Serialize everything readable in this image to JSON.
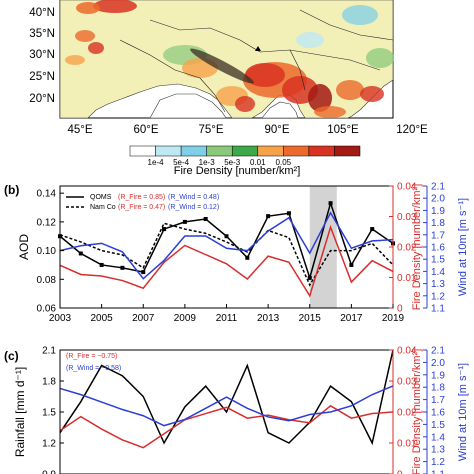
{
  "panel_a": {
    "lat_labels": [
      "40°N",
      "35°N",
      "30°N",
      "25°N",
      "20°N"
    ],
    "lon_labels": [
      "45°E",
      "60°E",
      "75°E",
      "90°E",
      "105°E",
      "120°E"
    ],
    "colorbar": {
      "ticks": [
        "1e-4",
        "5e-4",
        "1e-3",
        "5e-3",
        "0.01",
        "0.05"
      ],
      "colors": [
        "#ffffff",
        "#bfe8f5",
        "#7fd0e6",
        "#8ac97a",
        "#3fa84a",
        "#f6a24a",
        "#ec6a2c",
        "#d83222",
        "#a31a14"
      ],
      "title": "Fire Density [number/km²]"
    },
    "land_color": "#f2efb7",
    "ocean_color": "#ffffff"
  },
  "chart_data": [
    {
      "type": "line",
      "panel": "(b)",
      "x": [
        2003,
        2004,
        2005,
        2006,
        2007,
        2008,
        2009,
        2010,
        2011,
        2012,
        2013,
        2014,
        2015,
        2016,
        2017,
        2018,
        2019
      ],
      "xlim": [
        2003,
        2019
      ],
      "xticks": [
        "2003",
        "2005",
        "2007",
        "2009",
        "2011",
        "2013",
        "2015",
        "2017",
        "2019"
      ],
      "highlight_x": [
        2015,
        2016.3
      ],
      "axes": {
        "left": {
          "label": "AOD",
          "ylim": [
            0.06,
            0.145
          ],
          "ticks": [
            "0.06",
            "0.08",
            "0.10",
            "0.12",
            "0.14"
          ],
          "color": "#000000"
        },
        "right1": {
          "label": "Fire Density [number/km²]",
          "ylim": [
            0,
            0.04
          ],
          "ticks": [
            "0",
            "0.01",
            "0.02",
            "0.03",
            "0.04"
          ],
          "color": "#d92d2d"
        },
        "right2": {
          "label": "Wind at 10m [m s⁻¹]",
          "ylim": [
            1.1,
            2.1
          ],
          "ticks": [
            "1.1",
            "1.2",
            "1.3",
            "1.4",
            "1.5",
            "1.6",
            "1.7",
            "1.8",
            "1.9",
            "2.0",
            "2.1"
          ],
          "color": "#2b3ed6"
        }
      },
      "series": [
        {
          "name": "QOMS",
          "axis": "left",
          "color": "#000000",
          "style": "solid",
          "marker": true,
          "values": [
            0.11,
            0.098,
            0.09,
            0.088,
            0.085,
            0.115,
            0.12,
            0.122,
            0.11,
            0.095,
            0.124,
            0.126,
            0.081,
            0.133,
            0.09,
            0.115,
            0.105
          ]
        },
        {
          "name": "Nam Co",
          "axis": "left",
          "color": "#000000",
          "style": "dashed",
          "marker": false,
          "values": [
            0.111,
            0.106,
            0.1,
            0.097,
            0.088,
            0.119,
            0.115,
            0.112,
            0.106,
            0.099,
            0.114,
            0.109,
            0.076,
            0.1,
            0.1,
            0.105,
            0.09
          ]
        },
        {
          "name": "Fire",
          "axis": "right1",
          "color": "#d92d2d",
          "style": "solid",
          "marker": false,
          "values": [
            0.014,
            0.011,
            0.0105,
            0.009,
            0.0065,
            0.015,
            0.0205,
            0.0175,
            0.0145,
            0.0095,
            0.017,
            0.015,
            0.004,
            0.0265,
            0.0085,
            0.0155,
            0.012
          ]
        },
        {
          "name": "Wind",
          "axis": "right2",
          "color": "#2b3ed6",
          "style": "solid",
          "marker": false,
          "values": [
            1.57,
            1.61,
            1.63,
            1.56,
            1.34,
            1.49,
            1.69,
            1.69,
            1.59,
            1.57,
            1.73,
            1.84,
            1.55,
            1.88,
            1.59,
            1.65,
            1.66
          ]
        }
      ],
      "legend": [
        {
          "name": "QOMS",
          "style": "solid",
          "r_fire": "(R_Fire = 0.85)",
          "r_wind": "(R_Wind = 0.48)"
        },
        {
          "name": "Nam Co",
          "style": "dashed",
          "r_fire": "(R_Fire = 0.47)",
          "r_wind": "(R_Wind = 0.12)"
        }
      ]
    },
    {
      "type": "line",
      "panel": "(c)",
      "x": [
        2003,
        2004,
        2005,
        2006,
        2007,
        2008,
        2009,
        2010,
        2011,
        2012,
        2013,
        2014,
        2015,
        2016,
        2017,
        2018,
        2019
      ],
      "xlim": [
        2003,
        2019
      ],
      "axes": {
        "left": {
          "label": "Rainfall [mm d⁻¹]",
          "ylim": [
            0.9,
            2.1
          ],
          "ticks": [
            "0.9",
            "1.2",
            "1.5",
            "1.8",
            "2.1"
          ],
          "color": "#000000"
        },
        "right1": {
          "label": "Fire Density [number/km²]",
          "ylim": [
            0,
            0.04
          ],
          "ticks": [
            "0",
            "0.01",
            "0.02",
            "0.03",
            "0.04"
          ],
          "color": "#d92d2d"
        },
        "right2": {
          "label": "Wind at 10m [m s⁻¹]",
          "ylim": [
            1.1,
            2.1
          ],
          "ticks": [
            "1.1",
            "1.2",
            "1.3",
            "1.4",
            "1.5",
            "1.6",
            "1.7",
            "1.8",
            "1.9",
            "2.0",
            "2.1"
          ],
          "color": "#2b3ed6"
        }
      },
      "series": [
        {
          "name": "Rainfall",
          "axis": "left",
          "color": "#000000",
          "style": "solid",
          "values": [
            1.3,
            1.6,
            1.95,
            1.85,
            1.65,
            1.2,
            1.55,
            1.75,
            1.5,
            1.95,
            1.3,
            1.2,
            1.4,
            1.75,
            1.6,
            1.2,
            2.1
          ]
        },
        {
          "name": "Fire",
          "axis": "right1",
          "color": "#d92d2d",
          "style": "solid",
          "values": [
            0.014,
            0.0185,
            0.0145,
            0.011,
            0.0085,
            0.013,
            0.0175,
            0.0195,
            0.0215,
            0.018,
            0.019,
            0.0175,
            0.0165,
            0.022,
            0.018,
            0.0195,
            0.02
          ]
        },
        {
          "name": "Wind",
          "axis": "right2",
          "color": "#2b3ed6",
          "style": "solid",
          "values": [
            1.79,
            1.74,
            1.68,
            1.62,
            1.57,
            1.49,
            1.54,
            1.63,
            1.72,
            1.63,
            1.56,
            1.53,
            1.58,
            1.6,
            1.65,
            1.74,
            1.81
          ]
        }
      ],
      "legend": [
        {
          "r_fire": "(R_Fire = −0.75)",
          "r_wind": "(R_Wind = −0.58)"
        }
      ]
    }
  ]
}
